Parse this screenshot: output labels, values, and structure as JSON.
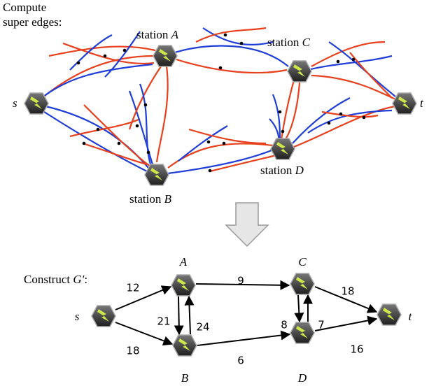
{
  "top": {
    "caption": [
      "Compute",
      "super edges:"
    ],
    "stations": [
      {
        "prefix": "station",
        "letter": "A"
      },
      {
        "prefix": "station",
        "letter": "C"
      },
      {
        "prefix": "station",
        "letter": "B"
      },
      {
        "prefix": "station",
        "letter": "D"
      }
    ],
    "endpoints": [
      "s",
      "t"
    ]
  },
  "bottom": {
    "caption": {
      "prefix": "Construct",
      "symbol": "G′",
      "suffix": ":"
    },
    "nodes": [
      "s",
      "A",
      "B",
      "C",
      "D",
      "t"
    ],
    "weights": [
      12,
      18,
      9,
      21,
      24,
      6,
      8,
      7,
      18,
      16
    ]
  }
}
